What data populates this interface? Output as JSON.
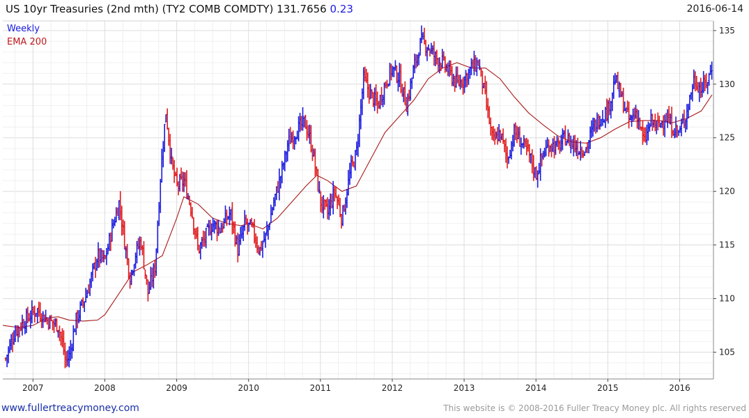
{
  "header": {
    "title": "US 10yr Treasuries (2nd mth) (TY2 COMB COMDTY) 131.7656",
    "change": "0.23",
    "date": "2016-06-14"
  },
  "legend": {
    "weekly_label": "Weekly",
    "ema_label": "EMA 200"
  },
  "footer": {
    "site": "www.fullertreacymoney.com",
    "copyright": "This website is © 2008-2016 Fuller Treacy Money plc. All rights reserved"
  },
  "colors": {
    "up_bar": "#1a1adf",
    "down_bar": "#e0181b",
    "ema_line": "#a81a1a",
    "grid": "#dcdcdc",
    "frame": "#888888"
  },
  "chart_data": {
    "type": "line",
    "chart_style": "weekly OHLC bars (blue up / red down) with EMA overlay",
    "xlim": [
      2006.58,
      2016.47
    ],
    "ylim": [
      102.5,
      135.9
    ],
    "y_axis_side": "right",
    "grid": true,
    "legend_position": "top-left",
    "x_ticks": [
      "2007",
      "2008",
      "2009",
      "2010",
      "2011",
      "2012",
      "2013",
      "2014",
      "2015",
      "2016"
    ],
    "x_tick_values": [
      2007,
      2008,
      2009,
      2010,
      2011,
      2012,
      2013,
      2014,
      2015,
      2016
    ],
    "y_ticks": [
      105,
      110,
      115,
      120,
      125,
      130,
      135
    ],
    "series": [
      {
        "name": "Weekly",
        "x": [
          2006.62,
          2006.75,
          2006.9,
          2007.05,
          2007.2,
          2007.35,
          2007.42,
          2007.45,
          2007.5,
          2007.6,
          2007.75,
          2007.9,
          2008.0,
          2008.1,
          2008.2,
          2008.28,
          2008.35,
          2008.42,
          2008.5,
          2008.6,
          2008.7,
          2008.78,
          2008.85,
          2008.93,
          2009.0,
          2009.1,
          2009.2,
          2009.3,
          2009.42,
          2009.5,
          2009.6,
          2009.75,
          2009.85,
          2009.95,
          2010.05,
          2010.15,
          2010.25,
          2010.35,
          2010.45,
          2010.55,
          2010.65,
          2010.78,
          2010.85,
          2010.9,
          2011.0,
          2011.1,
          2011.2,
          2011.3,
          2011.42,
          2011.5,
          2011.6,
          2011.7,
          2011.8,
          2011.9,
          2012.0,
          2012.1,
          2012.2,
          2012.3,
          2012.4,
          2012.5,
          2012.6,
          2012.7,
          2012.8,
          2012.9,
          2013.0,
          2013.1,
          2013.2,
          2013.3,
          2013.4,
          2013.5,
          2013.6,
          2013.7,
          2013.8,
          2013.9,
          2014.0,
          2014.1,
          2014.2,
          2014.3,
          2014.4,
          2014.5,
          2014.6,
          2014.7,
          2014.8,
          2014.9,
          2015.0,
          2015.1,
          2015.2,
          2015.3,
          2015.4,
          2015.5,
          2015.6,
          2015.7,
          2015.8,
          2015.9,
          2016.0,
          2016.1,
          2016.2,
          2016.3,
          2016.4,
          2016.45
        ],
        "values": [
          104.4,
          107.0,
          108.0,
          109.0,
          108.0,
          107.5,
          105.5,
          104.2,
          104.5,
          108.0,
          110.5,
          114.0,
          113.5,
          116.5,
          119.0,
          115.0,
          112.0,
          114.0,
          115.5,
          110.5,
          113.0,
          122.0,
          127.5,
          122.5,
          120.5,
          121.0,
          118.5,
          114.5,
          116.0,
          117.0,
          116.5,
          118.0,
          114.5,
          117.0,
          116.5,
          114.5,
          116.0,
          119.0,
          121.5,
          124.5,
          125.5,
          126.5,
          125.0,
          123.5,
          119.0,
          118.0,
          120.0,
          117.5,
          122.0,
          123.5,
          130.5,
          129.0,
          128.0,
          130.0,
          131.5,
          130.5,
          128.0,
          131.5,
          134.0,
          133.5,
          132.5,
          132.0,
          131.0,
          130.0,
          130.5,
          131.5,
          132.0,
          128.5,
          124.5,
          125.5,
          123.0,
          125.5,
          124.5,
          123.5,
          121.5,
          123.5,
          124.5,
          124.0,
          125.0,
          124.5,
          124.0,
          124.0,
          126.0,
          127.0,
          127.5,
          130.5,
          128.5,
          126.5,
          127.5,
          124.5,
          126.5,
          126.0,
          127.0,
          126.0,
          125.5,
          127.5,
          130.5,
          129.5,
          130.5,
          131.77
        ]
      },
      {
        "name": "EMA 200",
        "x": [
          2006.58,
          2006.8,
          2007.0,
          2007.2,
          2007.35,
          2007.5,
          2007.7,
          2007.9,
          2008.0,
          2008.2,
          2008.4,
          2008.6,
          2008.8,
          2009.0,
          2009.1,
          2009.3,
          2009.5,
          2009.7,
          2009.9,
          2010.0,
          2010.2,
          2010.4,
          2010.6,
          2010.8,
          2010.95,
          2011.1,
          2011.3,
          2011.5,
          2011.7,
          2011.9,
          2012.1,
          2012.3,
          2012.5,
          2012.7,
          2012.9,
          2013.1,
          2013.3,
          2013.5,
          2013.7,
          2013.9,
          2014.1,
          2014.3,
          2014.5,
          2014.7,
          2014.9,
          2015.1,
          2015.3,
          2015.5,
          2015.7,
          2015.9,
          2016.1,
          2016.3,
          2016.45
        ],
        "values": [
          107.5,
          107.3,
          107.5,
          108.2,
          108.3,
          108.0,
          107.9,
          108.0,
          108.5,
          110.5,
          112.5,
          113.2,
          114.0,
          117.5,
          119.5,
          118.8,
          117.5,
          117.0,
          116.8,
          117.0,
          116.5,
          117.5,
          119.0,
          120.5,
          121.5,
          121.0,
          120.0,
          120.5,
          123.0,
          125.5,
          127.0,
          128.5,
          130.5,
          131.5,
          132.0,
          131.5,
          131.5,
          130.5,
          128.8,
          127.3,
          126.2,
          125.2,
          124.6,
          124.5,
          125.0,
          125.8,
          126.5,
          126.6,
          126.6,
          126.4,
          126.8,
          127.5,
          129.0
        ]
      }
    ]
  }
}
